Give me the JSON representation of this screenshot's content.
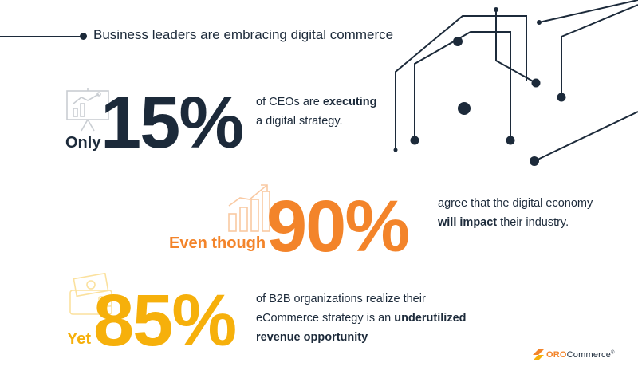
{
  "headline": "Business leaders are embracing digital commerce",
  "colors": {
    "navy": "#1c2a3a",
    "orange": "#f3842a",
    "yellow": "#f6b00b"
  },
  "stats": [
    {
      "prefix": "Only",
      "value": "15%",
      "desc_1": "of CEOs are ",
      "desc_bold": "executing",
      "desc_2": " a digital strategy.",
      "icon": "presentation-chart-icon"
    },
    {
      "prefix": "Even though",
      "value": "90%",
      "desc_1": "agree that the digital economy ",
      "desc_bold": "will impact",
      "desc_2": " their industry.",
      "icon": "growth-bar-chart-icon"
    },
    {
      "prefix": "Yet",
      "value": "85%",
      "desc_1": "of B2B organizations realize their eCommerce strategy is an ",
      "desc_bold": "underutilized revenue opportunity",
      "desc_2": "",
      "icon": "money-wallet-icon"
    }
  ],
  "logo": {
    "oro": "ORO",
    "commerce": "Commerce",
    "tm": "®"
  }
}
